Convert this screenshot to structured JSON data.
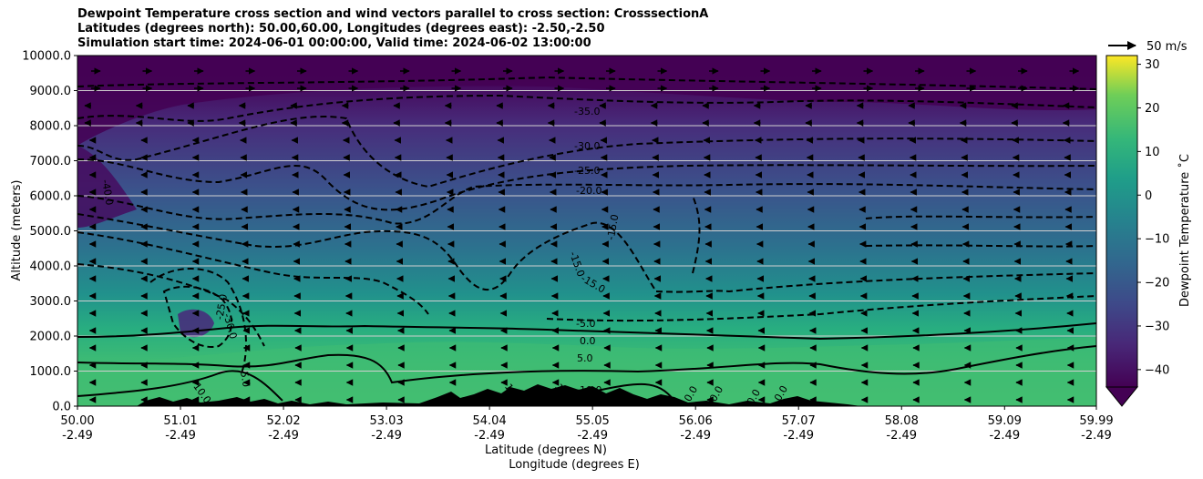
{
  "chart_data": {
    "type": "heatmap",
    "title_lines": [
      "Dewpoint Temperature cross section and wind vectors parallel to cross section: CrosssectionA",
      "Latitudes (degrees north): 50.00,60.00, Longitudes (degrees east): -2.50,-2.50",
      "Simulation start time: 2024-06-01 00:00:00, Valid time: 2024-06-02 13:00:00"
    ],
    "ylabel": "Altitude (meters)",
    "xlabel_lines": [
      "Latitude (degrees N)",
      "Longitude (degrees E)"
    ],
    "ylim": [
      0,
      10000
    ],
    "y_ticks": [
      "0.0",
      "1000.0",
      "2000.0",
      "3000.0",
      "4000.0",
      "5000.0",
      "6000.0",
      "7000.0",
      "8000.0",
      "9000.0",
      "10000.0"
    ],
    "x_ticks": [
      {
        "lat": "50.00",
        "lon": "-2.49"
      },
      {
        "lat": "51.01",
        "lon": "-2.49"
      },
      {
        "lat": "52.02",
        "lon": "-2.49"
      },
      {
        "lat": "53.03",
        "lon": "-2.49"
      },
      {
        "lat": "54.04",
        "lon": "-2.49"
      },
      {
        "lat": "55.05",
        "lon": "-2.49"
      },
      {
        "lat": "56.06",
        "lon": "-2.49"
      },
      {
        "lat": "57.07",
        "lon": "-2.49"
      },
      {
        "lat": "58.08",
        "lon": "-2.49"
      },
      {
        "lat": "59.09",
        "lon": "-2.49"
      },
      {
        "lat": "59.99",
        "lon": "-2.49"
      }
    ],
    "grid": "horizontal",
    "colorbar": {
      "label": "Dewpoint Temperature ˚C",
      "range": [
        -44,
        32
      ],
      "ticks": [
        "30",
        "20",
        "10",
        "0",
        "−10",
        "−20",
        "−30",
        "−40"
      ],
      "colormap": "viridis"
    },
    "wind_key": {
      "label": "50 m/s"
    },
    "contour_labels": [
      "-35.0",
      "-30.0",
      "-25.0",
      "-20.0",
      "-15.0",
      "-15.0",
      "-15.0",
      "-5.0",
      "0.0",
      "5.0",
      "10.0",
      "10.0",
      "-30.0",
      "-25.0",
      "-40.0",
      "5.0",
      "10",
      "10",
      "0.0",
      "0.0",
      "0.0",
      "0.0"
    ],
    "colors": {
      "terrain": "#000000",
      "contour": "#000000",
      "grid": "#d0d0d0"
    }
  }
}
